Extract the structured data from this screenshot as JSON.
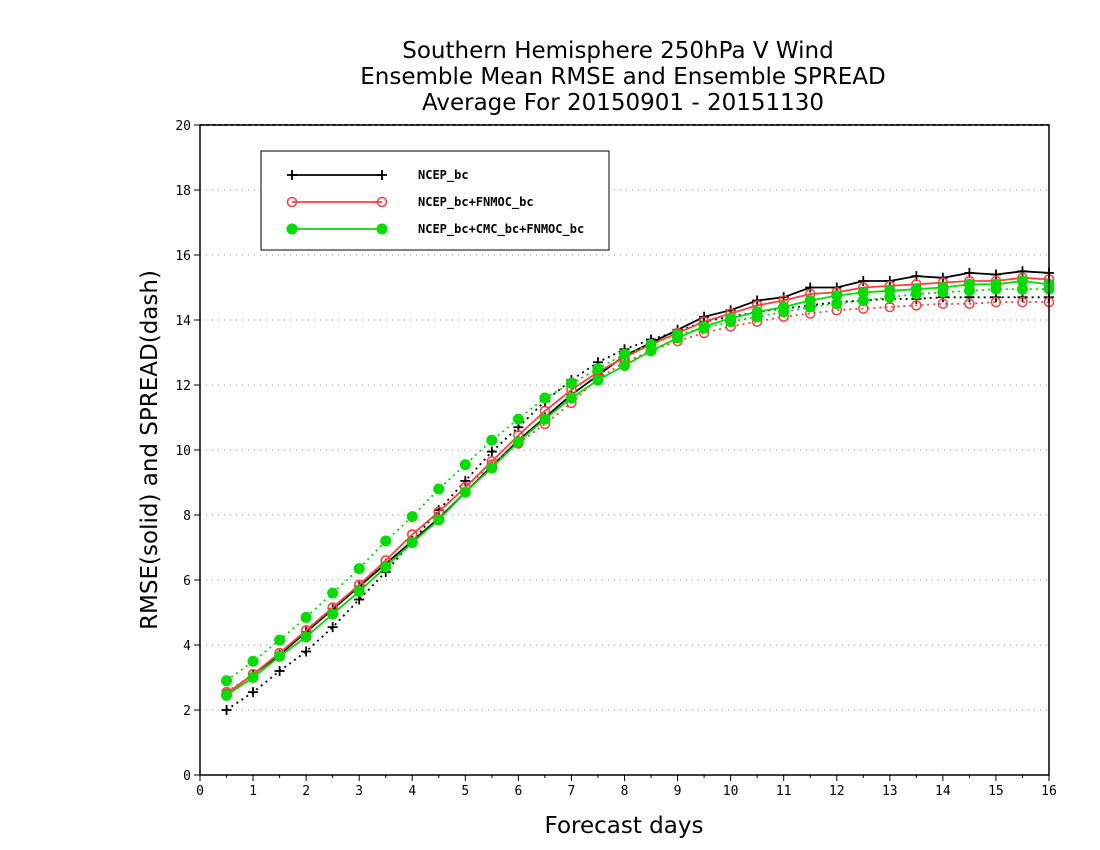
{
  "chart_data": {
    "type": "line",
    "title": [
      "Southern Hemisphere 250hPa V Wind",
      "Ensemble Mean RMSE and Ensemble SPREAD",
      "Average For 20150901 - 20151130"
    ],
    "xlabel": "Forecast days",
    "ylabel": "RMSE(solid) and SPREAD(dash)",
    "xlim": [
      0,
      16
    ],
    "ylim": [
      0,
      20
    ],
    "xticks": [
      "0",
      "1",
      "2",
      "3",
      "4",
      "5",
      "6",
      "7",
      "8",
      "9",
      "10",
      "11",
      "12",
      "13",
      "14",
      "15",
      "16"
    ],
    "yticks": [
      "0",
      "2",
      "4",
      "6",
      "8",
      "10",
      "12",
      "14",
      "16",
      "18",
      "20"
    ],
    "grid": "horizontal dotted",
    "legend_position": "top-left",
    "x": [
      0.5,
      1,
      1.5,
      2,
      2.5,
      3,
      3.5,
      4,
      4.5,
      5,
      5.5,
      6,
      6.5,
      7,
      7.5,
      8,
      8.5,
      9,
      9.5,
      10,
      10.5,
      11,
      11.5,
      12,
      12.5,
      13,
      13.5,
      14,
      14.5,
      15,
      15.5,
      16
    ],
    "series": [
      {
        "name": "NCEP_bc",
        "color": "#000000",
        "marker": "plus",
        "rmse": [
          2.5,
          3.1,
          3.7,
          4.4,
          5.1,
          5.8,
          6.5,
          7.2,
          7.9,
          8.7,
          9.5,
          10.3,
          11.0,
          11.7,
          12.3,
          12.9,
          13.3,
          13.7,
          14.1,
          14.3,
          14.6,
          14.7,
          15.0,
          15.0,
          15.2,
          15.2,
          15.35,
          15.3,
          15.45,
          15.4,
          15.5,
          15.45
        ],
        "spread": [
          2.0,
          2.55,
          3.2,
          3.8,
          4.55,
          5.4,
          6.25,
          7.2,
          8.15,
          9.05,
          9.95,
          10.7,
          11.5,
          12.15,
          12.7,
          13.1,
          13.4,
          13.65,
          13.95,
          14.1,
          14.25,
          14.35,
          14.45,
          14.55,
          14.6,
          14.65,
          14.65,
          14.7,
          14.7,
          14.7,
          14.7,
          14.7
        ]
      },
      {
        "name": "NCEP_bc+FNMOC_bc",
        "color": "#ff4040",
        "marker": "open-circle",
        "rmse": [
          2.5,
          3.1,
          3.75,
          4.45,
          5.15,
          5.85,
          6.6,
          7.4,
          8.1,
          8.85,
          9.65,
          10.45,
          11.2,
          11.85,
          12.4,
          12.85,
          13.25,
          13.6,
          13.95,
          14.2,
          14.45,
          14.6,
          14.8,
          14.85,
          15.0,
          15.05,
          15.1,
          15.15,
          15.2,
          15.2,
          15.3,
          15.25
        ],
        "spread": [
          2.55,
          3.1,
          3.75,
          4.45,
          5.15,
          5.85,
          6.6,
          7.4,
          8.1,
          8.85,
          9.55,
          10.2,
          10.8,
          11.45,
          12.2,
          12.7,
          13.05,
          13.35,
          13.6,
          13.8,
          13.95,
          14.1,
          14.2,
          14.3,
          14.35,
          14.4,
          14.45,
          14.5,
          14.5,
          14.55,
          14.55,
          14.55
        ]
      },
      {
        "name": "NCEP_bc+CMC_bc+FNMOC_bc",
        "color": "#00dd00",
        "marker": "filled-circle",
        "rmse": [
          2.45,
          3.0,
          3.65,
          4.25,
          4.95,
          5.65,
          6.4,
          7.15,
          7.85,
          8.7,
          9.45,
          10.25,
          10.95,
          11.6,
          12.15,
          12.6,
          13.05,
          13.45,
          13.8,
          14.05,
          14.25,
          14.4,
          14.6,
          14.75,
          14.85,
          14.9,
          14.95,
          15.0,
          15.1,
          15.1,
          15.2,
          15.1
        ],
        "spread": [
          2.9,
          3.5,
          4.15,
          4.85,
          5.6,
          6.35,
          7.2,
          7.95,
          8.8,
          9.55,
          10.3,
          10.95,
          11.6,
          12.05,
          12.5,
          12.95,
          13.25,
          13.55,
          13.75,
          13.95,
          14.1,
          14.25,
          14.4,
          14.5,
          14.6,
          14.7,
          14.8,
          14.85,
          14.9,
          14.95,
          14.95,
          14.95
        ]
      }
    ]
  }
}
